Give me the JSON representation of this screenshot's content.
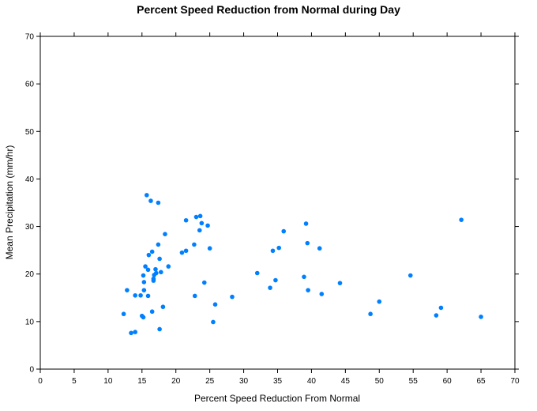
{
  "chart_data": {
    "type": "scatter",
    "title": "Percent Speed Reduction from Normal during Day",
    "xlabel": "Percent Speed Reduction From Normal",
    "ylabel": "Mean Precipitation (mm/hr)",
    "xlim": [
      0,
      70
    ],
    "ylim": [
      0,
      70
    ],
    "x_ticks": [
      0,
      5,
      10,
      15,
      20,
      25,
      30,
      35,
      40,
      45,
      50,
      55,
      60,
      65,
      70
    ],
    "y_ticks": [
      0,
      10,
      20,
      30,
      40,
      50,
      60,
      70
    ],
    "grid": false,
    "point_color": "#0080ff",
    "points": [
      {
        "x": 12.3,
        "y": 11.6
      },
      {
        "x": 12.8,
        "y": 16.6
      },
      {
        "x": 13.4,
        "y": 7.6
      },
      {
        "x": 14.0,
        "y": 7.8
      },
      {
        "x": 14.0,
        "y": 15.5
      },
      {
        "x": 14.8,
        "y": 15.5
      },
      {
        "x": 15.0,
        "y": 11.2
      },
      {
        "x": 15.2,
        "y": 10.9
      },
      {
        "x": 15.2,
        "y": 19.7
      },
      {
        "x": 15.3,
        "y": 18.3
      },
      {
        "x": 15.3,
        "y": 16.6
      },
      {
        "x": 15.5,
        "y": 21.6
      },
      {
        "x": 15.7,
        "y": 36.6
      },
      {
        "x": 15.9,
        "y": 15.4
      },
      {
        "x": 15.9,
        "y": 20.9
      },
      {
        "x": 16.0,
        "y": 24.0
      },
      {
        "x": 16.3,
        "y": 35.4
      },
      {
        "x": 16.5,
        "y": 24.7
      },
      {
        "x": 16.5,
        "y": 12.1
      },
      {
        "x": 16.7,
        "y": 19.0
      },
      {
        "x": 16.7,
        "y": 18.6
      },
      {
        "x": 16.8,
        "y": 19.8
      },
      {
        "x": 17.0,
        "y": 21.0
      },
      {
        "x": 17.1,
        "y": 20.2
      },
      {
        "x": 17.4,
        "y": 26.2
      },
      {
        "x": 17.4,
        "y": 35.0
      },
      {
        "x": 17.6,
        "y": 23.2
      },
      {
        "x": 17.6,
        "y": 8.4
      },
      {
        "x": 17.8,
        "y": 20.4
      },
      {
        "x": 18.1,
        "y": 13.1
      },
      {
        "x": 18.4,
        "y": 28.4
      },
      {
        "x": 18.9,
        "y": 21.6
      },
      {
        "x": 20.9,
        "y": 24.5
      },
      {
        "x": 21.5,
        "y": 31.3
      },
      {
        "x": 21.5,
        "y": 24.9
      },
      {
        "x": 22.7,
        "y": 26.2
      },
      {
        "x": 22.8,
        "y": 15.4
      },
      {
        "x": 23.0,
        "y": 32.0
      },
      {
        "x": 23.5,
        "y": 29.2
      },
      {
        "x": 23.6,
        "y": 32.2
      },
      {
        "x": 23.8,
        "y": 30.7
      },
      {
        "x": 24.2,
        "y": 18.2
      },
      {
        "x": 24.7,
        "y": 30.2
      },
      {
        "x": 25.0,
        "y": 25.4
      },
      {
        "x": 25.5,
        "y": 9.9
      },
      {
        "x": 25.8,
        "y": 13.6
      },
      {
        "x": 28.3,
        "y": 15.2
      },
      {
        "x": 32.0,
        "y": 20.2
      },
      {
        "x": 33.9,
        "y": 17.1
      },
      {
        "x": 34.3,
        "y": 24.9
      },
      {
        "x": 34.7,
        "y": 18.7
      },
      {
        "x": 35.2,
        "y": 25.5
      },
      {
        "x": 35.9,
        "y": 29.0
      },
      {
        "x": 38.9,
        "y": 19.4
      },
      {
        "x": 39.2,
        "y": 30.6
      },
      {
        "x": 39.4,
        "y": 26.5
      },
      {
        "x": 39.5,
        "y": 16.6
      },
      {
        "x": 41.2,
        "y": 25.4
      },
      {
        "x": 41.5,
        "y": 15.8
      },
      {
        "x": 44.2,
        "y": 18.1
      },
      {
        "x": 48.7,
        "y": 11.6
      },
      {
        "x": 50.0,
        "y": 14.2
      },
      {
        "x": 54.6,
        "y": 19.7
      },
      {
        "x": 58.4,
        "y": 11.3
      },
      {
        "x": 59.1,
        "y": 12.9
      },
      {
        "x": 62.1,
        "y": 31.4
      },
      {
        "x": 65.0,
        "y": 11.0
      }
    ]
  }
}
